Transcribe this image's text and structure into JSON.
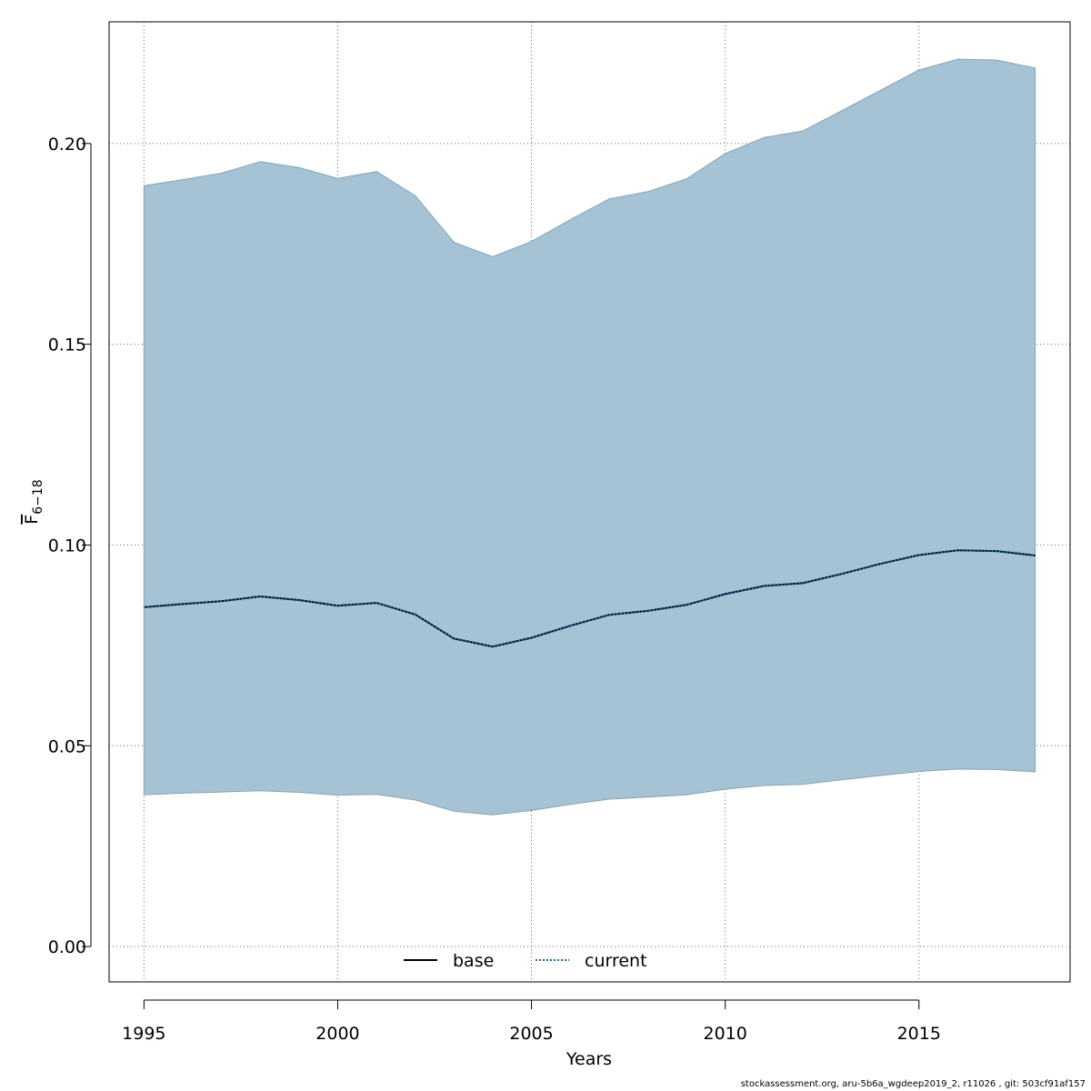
{
  "chart_data": {
    "type": "line",
    "title": "",
    "xlabel": "Years",
    "ylabel": "F",
    "ylabel_subscript": "6−18",
    "x": [
      1995,
      1996,
      1997,
      1998,
      1999,
      2000,
      2001,
      2002,
      2003,
      2004,
      2005,
      2006,
      2007,
      2008,
      2009,
      2010,
      2011,
      2012,
      2013,
      2014,
      2015,
      2016,
      2017,
      2018
    ],
    "series": [
      {
        "name": "base",
        "style": "solid",
        "color": "#000000",
        "values": [
          0.0845,
          0.0853,
          0.086,
          0.0872,
          0.0863,
          0.0849,
          0.0856,
          0.0827,
          0.0767,
          0.0747,
          0.0769,
          0.0799,
          0.0826,
          0.0836,
          0.0851,
          0.0878,
          0.0898,
          0.0905,
          0.0928,
          0.0953,
          0.0975,
          0.0987,
          0.0985,
          0.0974
        ]
      },
      {
        "name": "current",
        "style": "dotted",
        "color": "#1a6aa3",
        "values": [
          0.0845,
          0.0853,
          0.086,
          0.0872,
          0.0863,
          0.0849,
          0.0856,
          0.0827,
          0.0767,
          0.0747,
          0.0769,
          0.0799,
          0.0826,
          0.0836,
          0.0851,
          0.0878,
          0.0898,
          0.0905,
          0.0928,
          0.0953,
          0.0975,
          0.0987,
          0.0985,
          0.0974
        ]
      }
    ],
    "confidence_band": {
      "lower": [
        0.0378,
        0.0382,
        0.0385,
        0.0388,
        0.0384,
        0.0377,
        0.0379,
        0.0365,
        0.0337,
        0.0328,
        0.0339,
        0.0354,
        0.0367,
        0.0372,
        0.0378,
        0.0392,
        0.0401,
        0.0404,
        0.0415,
        0.0426,
        0.0436,
        0.0442,
        0.0441,
        0.0435
      ],
      "upper": [
        0.1895,
        0.191,
        0.1926,
        0.1955,
        0.194,
        0.1913,
        0.193,
        0.187,
        0.1754,
        0.1718,
        0.1756,
        0.181,
        0.1862,
        0.188,
        0.1912,
        0.1975,
        0.2015,
        0.2031,
        0.2081,
        0.2132,
        0.2183,
        0.221,
        0.2208,
        0.2188
      ],
      "color": "#a5c3d4"
    },
    "xlim": [
      1994.1,
      2018.9
    ],
    "ylim": [
      -0.0088,
      0.2303
    ],
    "xticks": [
      1995,
      2000,
      2005,
      2010,
      2015
    ],
    "yticks": [
      0.0,
      0.05,
      0.1,
      0.15,
      0.2
    ],
    "ytick_labels": [
      "0.00",
      "0.05",
      "0.10",
      "0.15",
      "0.20"
    ],
    "grid": true,
    "legend_position": "bottom-center"
  },
  "footer": {
    "text": "stockassessment.org, aru-5b6a_wgdeep2019_2, r11026 , git: 503cf91af157"
  }
}
